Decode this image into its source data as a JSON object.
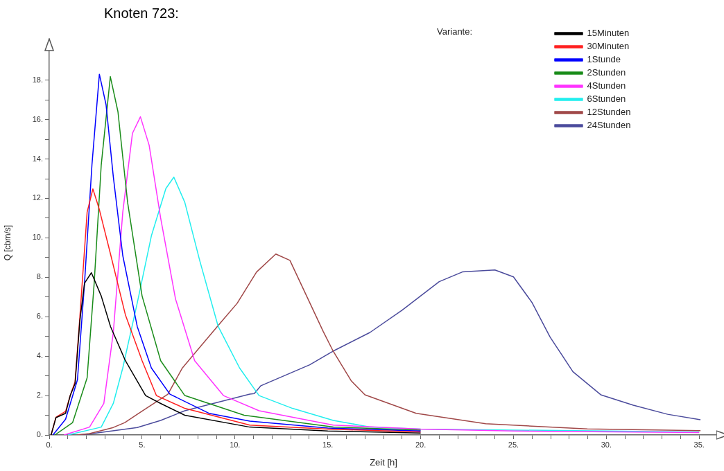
{
  "chart_data": {
    "type": "line",
    "title": "Knoten 723:",
    "xlabel": "Zeit [h]",
    "ylabel": "Q [cbm/s]",
    "legend_title": "Variante:",
    "legend": "top right",
    "xlim": [
      0,
      36
    ],
    "ylim": [
      0,
      19.5
    ],
    "xticks": [
      {
        "value": 0,
        "label": "0."
      },
      {
        "value": 1,
        "label": null
      },
      {
        "value": 2,
        "label": null
      },
      {
        "value": 3,
        "label": null
      },
      {
        "value": 4,
        "label": null
      },
      {
        "value": 5,
        "label": "5."
      },
      {
        "value": 6,
        "label": null
      },
      {
        "value": 7,
        "label": null
      },
      {
        "value": 8,
        "label": null
      },
      {
        "value": 9,
        "label": null
      },
      {
        "value": 10,
        "label": "10."
      },
      {
        "value": 11,
        "label": null
      },
      {
        "value": 12,
        "label": null
      },
      {
        "value": 13,
        "label": null
      },
      {
        "value": 14,
        "label": null
      },
      {
        "value": 15,
        "label": "15."
      },
      {
        "value": 16,
        "label": null
      },
      {
        "value": 17,
        "label": null
      },
      {
        "value": 18,
        "label": null
      },
      {
        "value": 19,
        "label": null
      },
      {
        "value": 20,
        "label": "20."
      },
      {
        "value": 21,
        "label": null
      },
      {
        "value": 22,
        "label": null
      },
      {
        "value": 23,
        "label": null
      },
      {
        "value": 24,
        "label": null
      },
      {
        "value": 25,
        "label": "25."
      },
      {
        "value": 26,
        "label": null
      },
      {
        "value": 27,
        "label": null
      },
      {
        "value": 28,
        "label": null
      },
      {
        "value": 29,
        "label": null
      },
      {
        "value": 30,
        "label": "30."
      },
      {
        "value": 31,
        "label": null
      },
      {
        "value": 32,
        "label": null
      },
      {
        "value": 33,
        "label": null
      },
      {
        "value": 34,
        "label": null
      },
      {
        "value": 35,
        "label": "35."
      }
    ],
    "yticks": [
      {
        "value": 0,
        "label": "0."
      },
      {
        "value": 1,
        "label": null
      },
      {
        "value": 2,
        "label": "2."
      },
      {
        "value": 3,
        "label": null
      },
      {
        "value": 4,
        "label": "4."
      },
      {
        "value": 5,
        "label": null
      },
      {
        "value": 6,
        "label": "6."
      },
      {
        "value": 7,
        "label": null
      },
      {
        "value": 8,
        "label": "8."
      },
      {
        "value": 9,
        "label": null
      },
      {
        "value": 10,
        "label": "10."
      },
      {
        "value": 11,
        "label": null
      },
      {
        "value": 12,
        "label": "12."
      },
      {
        "value": 13,
        "label": null
      },
      {
        "value": 14,
        "label": "14."
      },
      {
        "value": 15,
        "label": null
      },
      {
        "value": 16,
        "label": "16."
      },
      {
        "value": 17,
        "label": null
      },
      {
        "value": 18,
        "label": "18."
      }
    ],
    "series": [
      {
        "name": "15Minuten",
        "color": "#000000",
        "x": [
          0.1,
          0.36,
          0.88,
          1.13,
          1.39,
          1.65,
          1.9,
          2.27,
          2.8,
          3.3,
          4.1,
          5.19,
          6.0,
          7.3,
          10.8,
          15,
          20
        ],
        "values": [
          0,
          0.88,
          1.1,
          2.0,
          2.6,
          5.8,
          7.7,
          8.23,
          7.05,
          5.5,
          3.77,
          2.0,
          1.6,
          1.0,
          0.4,
          0.2,
          0.1
        ]
      },
      {
        "name": "30Minuten",
        "color": "#ff2020",
        "x": [
          0.1,
          0.36,
          0.88,
          1.13,
          1.39,
          1.65,
          2.04,
          2.35,
          2.68,
          3.32,
          4.1,
          5.0,
          5.77,
          7.3,
          10.8,
          15,
          20
        ],
        "values": [
          0,
          0.9,
          1.2,
          2.0,
          2.7,
          6.0,
          11.3,
          12.48,
          11.5,
          9.1,
          6.1,
          3.77,
          2.0,
          1.35,
          0.5,
          0.3,
          0.15
        ]
      },
      {
        "name": "1Stunde",
        "color": "#0000ff",
        "x": [
          0.2,
          0.88,
          1.52,
          1.9,
          2.3,
          2.7,
          3.06,
          3.45,
          3.96,
          4.74,
          5.5,
          6.5,
          8.6,
          10.8,
          15,
          20
        ],
        "values": [
          0,
          0.8,
          2.8,
          7.7,
          13.7,
          18.3,
          16.75,
          13.1,
          9.1,
          5.5,
          3.4,
          2.07,
          1.1,
          0.7,
          0.35,
          0.2
        ]
      },
      {
        "name": "2Stunden",
        "color": "#1a8c1a",
        "x": [
          0.3,
          1.26,
          2.04,
          2.42,
          2.8,
          3.29,
          3.7,
          4.22,
          5.0,
          6.0,
          7.3,
          10.5,
          15.3,
          20
        ],
        "values": [
          0,
          0.63,
          2.9,
          7.7,
          13.7,
          18.18,
          16.4,
          11.8,
          7.05,
          3.77,
          2.0,
          1.0,
          0.4,
          0.25
        ]
      },
      {
        "name": "4Stunden",
        "color": "#ff33ff",
        "x": [
          0.8,
          2.17,
          2.94,
          3.45,
          3.96,
          4.48,
          4.91,
          5.38,
          6.0,
          6.8,
          7.83,
          9.38,
          11.3,
          15.3,
          20,
          25,
          35
        ],
        "values": [
          0,
          0.4,
          1.6,
          5.2,
          11.3,
          15.3,
          16.14,
          14.7,
          11.0,
          6.9,
          3.77,
          2.0,
          1.23,
          0.5,
          0.3,
          0.2,
          0.12
        ]
      },
      {
        "name": "6Stunden",
        "color": "#22eeee",
        "x": [
          1.0,
          2.8,
          3.45,
          3.96,
          4.74,
          5.5,
          6.28,
          6.71,
          7.3,
          8.1,
          9.1,
          10.25,
          11.3,
          13.1,
          15.3,
          17.3,
          20,
          25,
          35
        ],
        "values": [
          0,
          0.4,
          1.6,
          3.4,
          6.7,
          10.1,
          12.5,
          13.08,
          11.8,
          8.86,
          5.5,
          3.4,
          2.0,
          1.35,
          0.74,
          0.4,
          0.3,
          0.25,
          0.15
        ]
      },
      {
        "name": "12Stunden",
        "color": "#a04848",
        "x": [
          1.5,
          2.17,
          3.45,
          4.07,
          4.74,
          6.39,
          7.17,
          7.93,
          9.23,
          10.12,
          11.16,
          12.2,
          12.96,
          13.86,
          14.76,
          15.28,
          16.27,
          17.0,
          19.76,
          23.5,
          28.98,
          35.07
        ],
        "values": [
          0,
          0.07,
          0.38,
          0.63,
          1.05,
          2.07,
          3.4,
          4.25,
          5.7,
          6.68,
          8.26,
          9.18,
          8.86,
          7.05,
          5.24,
          4.27,
          2.74,
          2.04,
          1.1,
          0.57,
          0.31,
          0.22
        ]
      },
      {
        "name": "24Stunden",
        "color": "#4b4b9c",
        "x": [
          1.5,
          2.17,
          4.74,
          6.0,
          7.3,
          10.8,
          11.04,
          11.4,
          14.03,
          15.28,
          17.27,
          19.0,
          21.0,
          22.25,
          24.0,
          25.0,
          25.99,
          26.97,
          28.2,
          29.7,
          31.45,
          33.3,
          35.07
        ],
        "values": [
          0,
          0.05,
          0.38,
          0.74,
          1.23,
          2.07,
          2.1,
          2.5,
          3.56,
          4.25,
          5.2,
          6.33,
          7.78,
          8.27,
          8.37,
          8.02,
          6.73,
          4.97,
          3.21,
          2.04,
          1.51,
          1.05,
          0.77
        ]
      }
    ]
  }
}
